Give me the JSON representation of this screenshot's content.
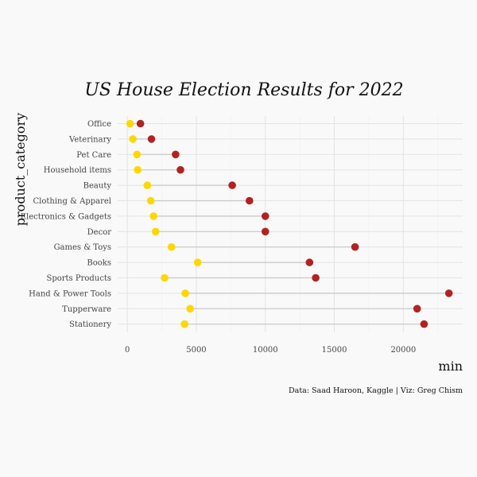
{
  "chart_data": {
    "type": "dumbbell",
    "title": "US House Election Results for 2022",
    "xlabel": "min",
    "ylabel": "product_category",
    "caption": "Data: Saad Haroon, Kaggle | Viz: Greg Chism",
    "xlim": [
      -700,
      24300
    ],
    "xticks": [
      0,
      5000,
      10000,
      15000,
      20000
    ],
    "categories": [
      "Office",
      "Veterinary",
      "Pet Care",
      "Household items",
      "Beauty",
      "Clothing & Apparel",
      "Electronics & Gadgets",
      "Decor",
      "Games & Toys",
      "Books",
      "Sports Products",
      "Hand & Power Tools",
      "Tupperware",
      "Stationery"
    ],
    "series": [
      {
        "color": "#FFD700",
        "values": [
          200,
          400,
          700,
          750,
          1450,
          1700,
          1900,
          2050,
          3200,
          5100,
          2700,
          4200,
          4550,
          4150
        ]
      },
      {
        "color": "#B22222",
        "values": [
          950,
          1750,
          3500,
          3850,
          7600,
          8850,
          10000,
          10000,
          16500,
          13200,
          13650,
          23300,
          21000,
          21500
        ]
      }
    ],
    "grid": true,
    "legend": "none",
    "segment_color": "#c8c8c8"
  }
}
